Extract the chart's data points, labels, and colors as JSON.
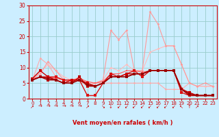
{
  "x": [
    0,
    1,
    2,
    3,
    4,
    5,
    6,
    7,
    8,
    9,
    10,
    11,
    12,
    13,
    14,
    15,
    16,
    17,
    18,
    19,
    20,
    21,
    22,
    23
  ],
  "lines": [
    {
      "y": [
        6,
        13,
        11,
        7,
        6,
        6,
        6,
        4,
        5,
        5,
        5,
        5,
        5,
        5,
        5,
        5,
        5,
        3,
        3,
        3,
        5,
        4,
        4,
        4
      ],
      "color": "#ffaaaa",
      "lw": 0.8,
      "marker": "D",
      "ms": 1.8,
      "zorder": 3
    },
    {
      "y": [
        6.5,
        8.5,
        11,
        9,
        7,
        6,
        7,
        5,
        5,
        6,
        10,
        9,
        11,
        9,
        9,
        15,
        16,
        17,
        17,
        11,
        5,
        4,
        4,
        4
      ],
      "color": "#ffbbbb",
      "lw": 0.8,
      "marker": "D",
      "ms": 1.8,
      "zorder": 3
    },
    {
      "y": [
        6.5,
        8,
        12,
        9,
        6,
        5,
        6,
        4,
        5,
        6,
        22,
        19,
        22,
        9,
        9,
        28,
        24,
        17,
        17,
        11,
        5,
        4,
        5,
        4
      ],
      "color": "#ff9999",
      "lw": 0.8,
      "marker": "D",
      "ms": 1.8,
      "zorder": 3
    },
    {
      "y": [
        6.5,
        7,
        7,
        6.5,
        6,
        6,
        6.5,
        5.5,
        5,
        5.5,
        8,
        8,
        9,
        9,
        8.5,
        9,
        9,
        9,
        9,
        3.5,
        1.5,
        1,
        1,
        1
      ],
      "color": "#ff6666",
      "lw": 0.9,
      "marker": "s",
      "ms": 2.0,
      "zorder": 4
    },
    {
      "y": [
        6,
        7,
        7,
        7,
        6,
        6,
        6,
        1,
        1,
        5,
        8,
        7,
        8,
        9,
        7,
        9,
        9,
        9,
        9,
        2,
        1,
        1,
        1,
        1
      ],
      "color": "#dd1111",
      "lw": 1.0,
      "marker": "s",
      "ms": 2.2,
      "zorder": 5
    },
    {
      "y": [
        6,
        7,
        6,
        6,
        5,
        5,
        7,
        4,
        4,
        5,
        7,
        7,
        7,
        8,
        8,
        9,
        9,
        9,
        9,
        3,
        1,
        1,
        1,
        1
      ],
      "color": "#bb0000",
      "lw": 1.0,
      "marker": "s",
      "ms": 2.2,
      "zorder": 5
    },
    {
      "y": [
        6.5,
        9,
        7,
        6,
        5,
        6,
        6,
        5,
        4,
        5,
        7,
        7,
        8,
        8,
        8,
        9,
        9,
        9,
        9,
        3,
        2,
        1,
        1,
        1
      ],
      "color": "#cc0000",
      "lw": 1.0,
      "marker": "s",
      "ms": 2.2,
      "zorder": 5
    },
    {
      "y": [
        6,
        7,
        6.5,
        6,
        5,
        5,
        6,
        4.5,
        4,
        5,
        7,
        7,
        7,
        8,
        8,
        9,
        9,
        9,
        9,
        3,
        1.5,
        1,
        1,
        1
      ],
      "color": "#990000",
      "lw": 1.1,
      "marker": "s",
      "ms": 2.2,
      "zorder": 5
    }
  ],
  "arrow_dirs": [
    "↗",
    "→",
    "→",
    "→",
    "→",
    "→",
    "→",
    "↗",
    "",
    "↘",
    "↓",
    "↙",
    "↙",
    "↙",
    "↙",
    "↙",
    "↙",
    "↙",
    "↙",
    "↖",
    "↑",
    "↗",
    "",
    ""
  ],
  "bg_color": "#cceeff",
  "grid_color": "#99cccc",
  "xlabel": "Vent moyen/en rafales ( km/h )",
  "xlabel_color": "#cc0000",
  "tick_color": "#cc0000",
  "axis_color": "#cc0000",
  "ylim": [
    0,
    30
  ],
  "xlim": [
    -0.5,
    23.5
  ],
  "yticks": [
    0,
    5,
    10,
    15,
    20,
    25,
    30
  ],
  "xticks": [
    0,
    1,
    2,
    3,
    4,
    5,
    6,
    7,
    8,
    9,
    10,
    11,
    12,
    13,
    14,
    15,
    16,
    17,
    18,
    19,
    20,
    21,
    22,
    23
  ]
}
